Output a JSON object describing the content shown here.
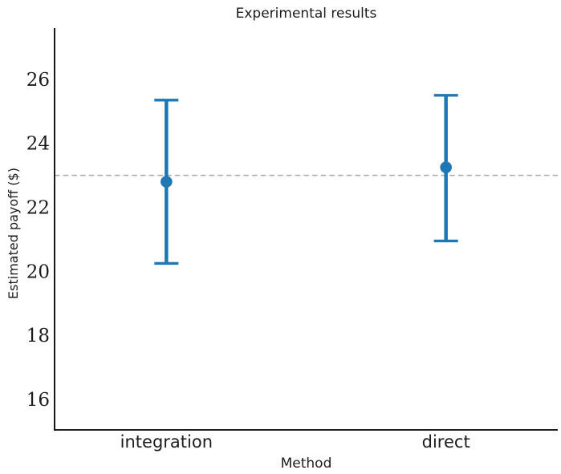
{
  "chart_data": {
    "type": "scatter",
    "title": "Experimental results",
    "xlabel": "Method",
    "ylabel": "Estimated payoff ($)",
    "categories": [
      "integration",
      "direct"
    ],
    "series": [
      {
        "name": "estimated payoff",
        "means": [
          22.8,
          23.25
        ],
        "ci_low": [
          20.25,
          20.95
        ],
        "ci_high": [
          25.35,
          25.5
        ]
      }
    ],
    "reference_line": {
      "value": 23.0,
      "style": "dashed"
    },
    "yticks": [
      16,
      18,
      20,
      22,
      24,
      26
    ],
    "ylim": [
      15.05,
      27.6
    ],
    "grid": false,
    "legend": "none",
    "colors": {
      "marker": "#1f77b4",
      "reference": "#a6a6a6",
      "axis": "#000000",
      "text": "#1c1c1c"
    }
  }
}
